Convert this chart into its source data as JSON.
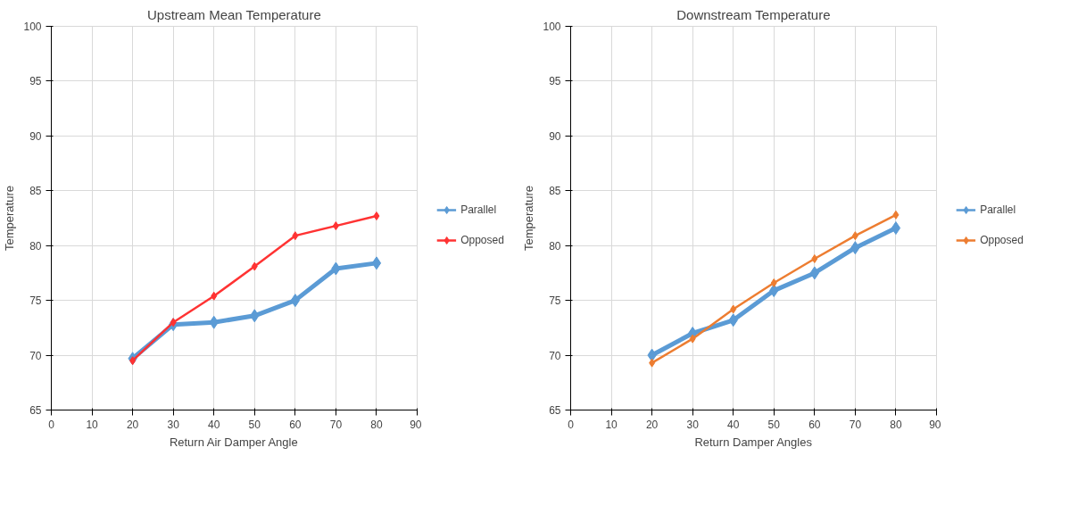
{
  "chart_data": [
    {
      "type": "line",
      "title": "Upstream Mean Temperature",
      "xlabel": "Return Air Damper Angle",
      "ylabel": "Temperature",
      "x": [
        20,
        30,
        40,
        50,
        60,
        70,
        80
      ],
      "series": [
        {
          "name": "Parallel",
          "color": "#5b9bd5",
          "values": [
            69.7,
            72.8,
            73.0,
            73.6,
            75.0,
            77.9,
            78.4
          ]
        },
        {
          "name": "Opposed",
          "color": "#ff3333",
          "values": [
            69.5,
            73.0,
            75.4,
            78.1,
            80.9,
            81.8,
            82.7
          ]
        }
      ],
      "xlim": [
        0,
        90
      ],
      "xticks": [
        0,
        10,
        20,
        30,
        40,
        50,
        60,
        70,
        80,
        90
      ],
      "ylim": [
        65,
        100
      ],
      "yticks": [
        65,
        70,
        75,
        80,
        85,
        90,
        95,
        100
      ],
      "grid": true,
      "legend": "right",
      "marker": "diamond",
      "line_style": "solid"
    },
    {
      "type": "line",
      "title": "Downstream Temperature",
      "xlabel": "Return Damper Angles",
      "ylabel": "Temperature",
      "x": [
        20,
        30,
        40,
        50,
        60,
        70,
        80
      ],
      "series": [
        {
          "name": "Parallel",
          "color": "#5b9bd5",
          "values": [
            70.0,
            72.0,
            73.2,
            75.9,
            77.5,
            79.8,
            81.6
          ]
        },
        {
          "name": "Opposed",
          "color": "#ed7d31",
          "values": [
            69.3,
            71.5,
            74.2,
            76.6,
            78.8,
            80.9,
            82.8
          ]
        }
      ],
      "xlim": [
        0,
        90
      ],
      "xticks": [
        0,
        10,
        20,
        30,
        40,
        50,
        60,
        70,
        80,
        90
      ],
      "ylim": [
        65,
        100
      ],
      "yticks": [
        65,
        70,
        75,
        80,
        85,
        90,
        95,
        100
      ],
      "grid": true,
      "legend": "right",
      "marker": "diamond",
      "line_style": "solid"
    }
  ]
}
